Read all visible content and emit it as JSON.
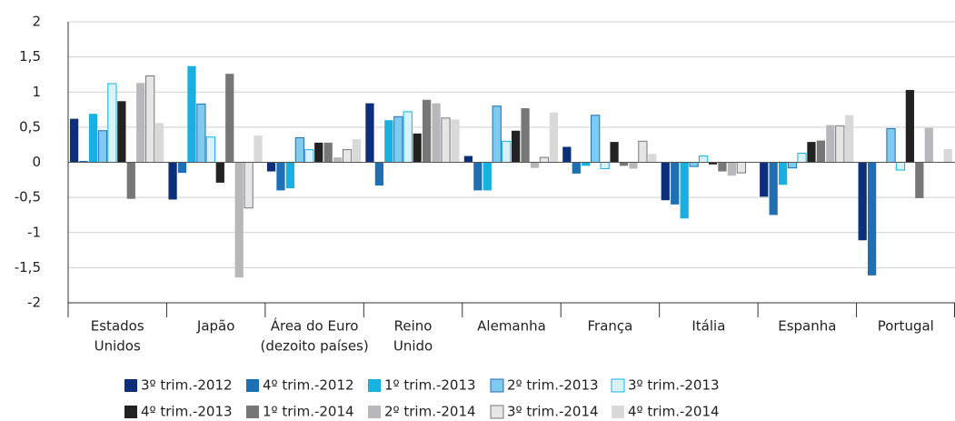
{
  "chart_data": {
    "type": "bar",
    "categories": [
      [
        "Estados",
        "Unidos"
      ],
      [
        "Japão"
      ],
      [
        "Área do Euro",
        "(dezoito países)"
      ],
      [
        "Reino",
        "Unido"
      ],
      [
        "Alemanha"
      ],
      [
        "França"
      ],
      [
        "Itália"
      ],
      [
        "Espanha"
      ],
      [
        "Portugal"
      ]
    ],
    "ylim": [
      -2,
      2
    ],
    "yticks": [
      -2,
      {
        "value": -1.5,
        "label": "-1,5"
      },
      -1,
      {
        "value": -0.5,
        "label": "-0,5"
      },
      0,
      {
        "value": 0.5,
        "label": "0,5"
      },
      1,
      {
        "value": 1.5,
        "label": "1,5"
      },
      2
    ],
    "grid": true,
    "legend": "bottom",
    "series": [
      {
        "name": "3º trim.-2012",
        "color": "#0d2f7a",
        "values": [
          0.62,
          -0.53,
          -0.13,
          0.84,
          0.09,
          0.22,
          -0.54,
          -0.49,
          -1.11
        ]
      },
      {
        "name": "4º trim.-2012",
        "color": "#1f6fb5",
        "values": [
          0.02,
          -0.15,
          -0.4,
          -0.33,
          -0.4,
          -0.16,
          -0.6,
          -0.75,
          -1.61
        ]
      },
      {
        "name": "1º trim.-2013",
        "color": "#17b0e0",
        "values": [
          0.69,
          1.37,
          -0.37,
          0.6,
          -0.4,
          -0.05,
          -0.8,
          -0.32,
          0
        ]
      },
      {
        "name": "2º trim.-2013",
        "color": "#7fcbef",
        "values": [
          0.45,
          0.83,
          0.35,
          0.65,
          0.8,
          0.67,
          -0.06,
          -0.08,
          0.48
        ]
      },
      {
        "name": "3º trim.-2013",
        "color": "#d9f1fb",
        "values": [
          1.12,
          0.36,
          0.18,
          0.72,
          0.3,
          -0.09,
          0.09,
          0.13,
          -0.11
        ]
      },
      {
        "name": "4º trim.-2013",
        "color": "#222222",
        "values": [
          0.87,
          -0.29,
          0.28,
          0.41,
          0.45,
          0.29,
          -0.03,
          0.29,
          1.03
        ]
      },
      {
        "name": "1º trim.-2014",
        "color": "#777777",
        "values": [
          -0.52,
          1.26,
          0.28,
          0.89,
          0.77,
          -0.05,
          -0.13,
          0.31,
          -0.51
        ]
      },
      {
        "name": "2º trim.-2014",
        "color": "#b8b8bc",
        "values": [
          1.13,
          -1.64,
          0.07,
          0.84,
          -0.08,
          -0.09,
          -0.19,
          0.53,
          0.49
        ]
      },
      {
        "name": "3º trim.-2014",
        "color": "#e6e6e6",
        "values": [
          1.23,
          -0.65,
          0.18,
          0.63,
          0.07,
          0.3,
          -0.15,
          0.52,
          0
        ]
      },
      {
        "name": "4º trim.-2014",
        "color": "#d9d9d9",
        "values": [
          0.56,
          0.38,
          0.33,
          0.61,
          0.71,
          0.12,
          0.0,
          0.67,
          0.19
        ]
      }
    ]
  }
}
